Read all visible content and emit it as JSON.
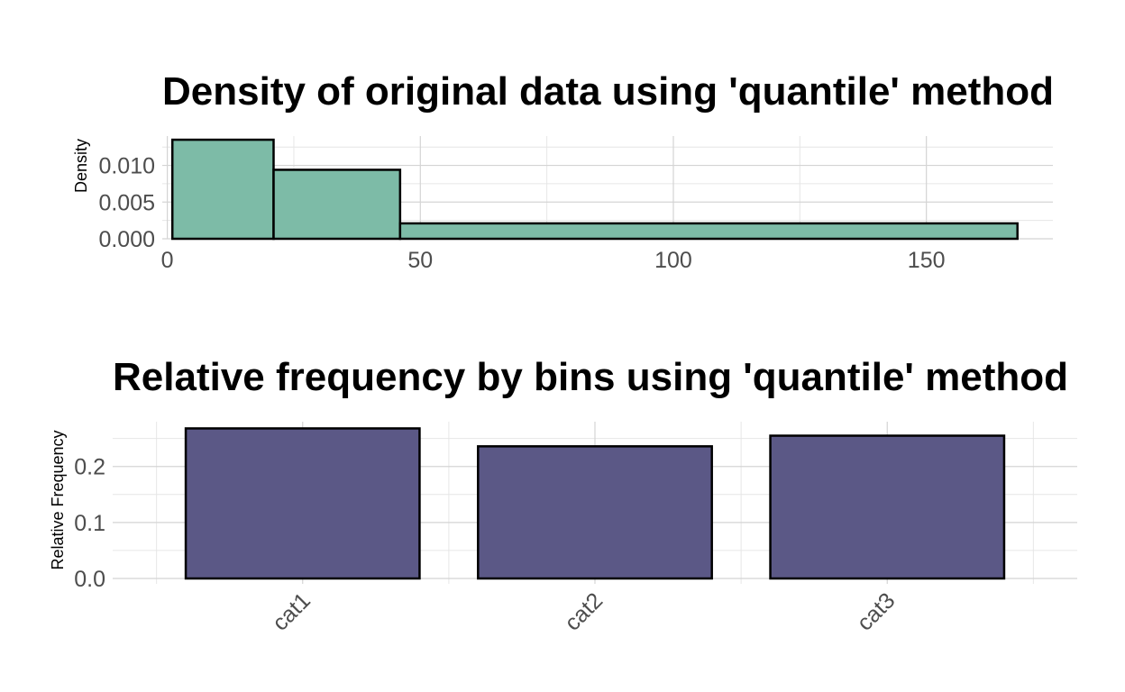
{
  "chart_data": [
    {
      "type": "bar",
      "subtype": "histogram",
      "title": "Density of original data using 'quantile' method",
      "xlabel": "",
      "ylabel": "Density",
      "bins": [
        {
          "x0": 1,
          "x1": 21,
          "value": 0.0135
        },
        {
          "x0": 21,
          "x1": 46,
          "value": 0.0094
        },
        {
          "x0": 46,
          "x1": 168,
          "value": 0.0021
        }
      ],
      "xlim": [
        -1,
        175
      ],
      "ylim": [
        0,
        0.014
      ],
      "x_ticks": [
        0,
        50,
        100,
        150
      ],
      "y_ticks": [
        "0.000",
        "0.005",
        "0.010"
      ],
      "y_tick_values": [
        0,
        0.005,
        0.01
      ],
      "fill": "#7dbba7",
      "stroke": "#000000",
      "grid": true,
      "legend": "none"
    },
    {
      "type": "bar",
      "title": "Relative frequency by bins using 'quantile' method",
      "xlabel": "",
      "ylabel": "Relative Frequency",
      "categories": [
        "cat1",
        "cat2",
        "cat3"
      ],
      "values": [
        0.268,
        0.236,
        0.255
      ],
      "ylim": [
        0,
        0.28
      ],
      "y_ticks": [
        "0.0",
        "0.1",
        "0.2"
      ],
      "y_tick_values": [
        0,
        0.1,
        0.2
      ],
      "fill": "#5b5886",
      "stroke": "#000000",
      "grid": true,
      "legend": "none"
    }
  ]
}
